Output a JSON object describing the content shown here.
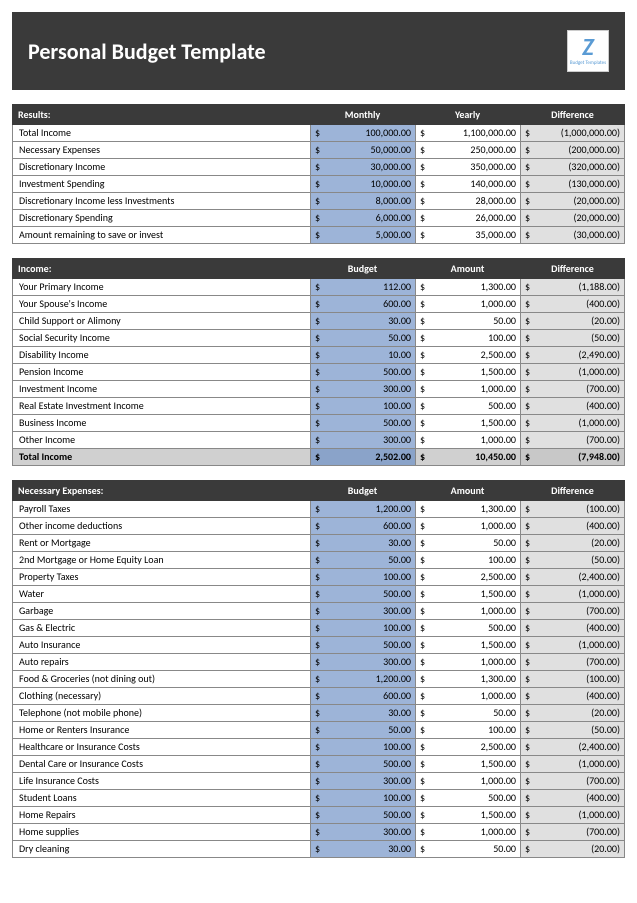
{
  "title": "Personal Budget Template",
  "logo": {
    "letter": "Z",
    "subtitle": "Budget Templates"
  },
  "currency": "$",
  "colors": {
    "header_bg": "#3a3a3a",
    "budget_col_bg": "#9db4d8",
    "diff_col_bg": "#e0e0e0",
    "total_row_bg": "#d0d0d0"
  },
  "sections": [
    {
      "title": "Results:",
      "columns": [
        "Monthly",
        "Yearly",
        "Difference"
      ],
      "rows": [
        {
          "label": "Total Income",
          "v1": "100,000.00",
          "v2": "1,100,000.00",
          "v3": "(1,000,000.00)"
        },
        {
          "label": "Necessary Expenses",
          "v1": "50,000.00",
          "v2": "250,000.00",
          "v3": "(200,000.00)"
        },
        {
          "label": "Discretionary Income",
          "v1": "30,000.00",
          "v2": "350,000.00",
          "v3": "(320,000.00)"
        },
        {
          "label": "Investment Spending",
          "v1": "10,000.00",
          "v2": "140,000.00",
          "v3": "(130,000.00)"
        },
        {
          "label": "Discretionary Income less Investments",
          "v1": "8,000.00",
          "v2": "28,000.00",
          "v3": "(20,000.00)"
        },
        {
          "label": "Discretionary Spending",
          "v1": "6,000.00",
          "v2": "26,000.00",
          "v3": "(20,000.00)"
        },
        {
          "label": "Amount remaining to save or invest",
          "v1": "5,000.00",
          "v2": "35,000.00",
          "v3": "(30,000.00)"
        }
      ]
    },
    {
      "title": "Income:",
      "columns": [
        "Budget",
        "Amount",
        "Difference"
      ],
      "rows": [
        {
          "label": "Your Primary Income",
          "v1": "112.00",
          "v2": "1,300.00",
          "v3": "(1,188.00)"
        },
        {
          "label": "Your Spouse's Income",
          "v1": "600.00",
          "v2": "1,000.00",
          "v3": "(400.00)"
        },
        {
          "label": "Child Support or Alimony",
          "v1": "30.00",
          "v2": "50.00",
          "v3": "(20.00)"
        },
        {
          "label": "Social Security Income",
          "v1": "50.00",
          "v2": "100.00",
          "v3": "(50.00)"
        },
        {
          "label": "Disability Income",
          "v1": "10.00",
          "v2": "2,500.00",
          "v3": "(2,490.00)"
        },
        {
          "label": "Pension Income",
          "v1": "500.00",
          "v2": "1,500.00",
          "v3": "(1,000.00)"
        },
        {
          "label": "Investment Income",
          "v1": "300.00",
          "v2": "1,000.00",
          "v3": "(700.00)"
        },
        {
          "label": "Real Estate Investment Income",
          "v1": "100.00",
          "v2": "500.00",
          "v3": "(400.00)"
        },
        {
          "label": "Business Income",
          "v1": "500.00",
          "v2": "1,500.00",
          "v3": "(1,000.00)"
        },
        {
          "label": "Other Income",
          "v1": "300.00",
          "v2": "1,000.00",
          "v3": "(700.00)"
        },
        {
          "label": "Total Income",
          "v1": "2,502.00",
          "v2": "10,450.00",
          "v3": "(7,948.00)",
          "total": true
        }
      ]
    },
    {
      "title": "Necessary Expenses:",
      "columns": [
        "Budget",
        "Amount",
        "Difference"
      ],
      "rows": [
        {
          "label": "Payroll Taxes",
          "v1": "1,200.00",
          "v2": "1,300.00",
          "v3": "(100.00)"
        },
        {
          "label": "Other income deductions",
          "v1": "600.00",
          "v2": "1,000.00",
          "v3": "(400.00)"
        },
        {
          "label": "Rent or Mortgage",
          "v1": "30.00",
          "v2": "50.00",
          "v3": "(20.00)"
        },
        {
          "label": "2nd Mortgage or Home Equity Loan",
          "v1": "50.00",
          "v2": "100.00",
          "v3": "(50.00)"
        },
        {
          "label": "Property Taxes",
          "v1": "100.00",
          "v2": "2,500.00",
          "v3": "(2,400.00)"
        },
        {
          "label": "Water",
          "v1": "500.00",
          "v2": "1,500.00",
          "v3": "(1,000.00)"
        },
        {
          "label": "Garbage",
          "v1": "300.00",
          "v2": "1,000.00",
          "v3": "(700.00)"
        },
        {
          "label": "Gas & Electric",
          "v1": "100.00",
          "v2": "500.00",
          "v3": "(400.00)"
        },
        {
          "label": "Auto Insurance",
          "v1": "500.00",
          "v2": "1,500.00",
          "v3": "(1,000.00)"
        },
        {
          "label": "Auto repairs",
          "v1": "300.00",
          "v2": "1,000.00",
          "v3": "(700.00)"
        },
        {
          "label": "Food & Groceries (not dining out)",
          "v1": "1,200.00",
          "v2": "1,300.00",
          "v3": "(100.00)"
        },
        {
          "label": "Clothing (necessary)",
          "v1": "600.00",
          "v2": "1,000.00",
          "v3": "(400.00)"
        },
        {
          "label": "Telephone (not mobile phone)",
          "v1": "30.00",
          "v2": "50.00",
          "v3": "(20.00)"
        },
        {
          "label": "Home or Renters Insurance",
          "v1": "50.00",
          "v2": "100.00",
          "v3": "(50.00)"
        },
        {
          "label": "Healthcare or Insurance Costs",
          "v1": "100.00",
          "v2": "2,500.00",
          "v3": "(2,400.00)"
        },
        {
          "label": "Dental Care or Insurance Costs",
          "v1": "500.00",
          "v2": "1,500.00",
          "v3": "(1,000.00)"
        },
        {
          "label": "Life Insurance Costs",
          "v1": "300.00",
          "v2": "1,000.00",
          "v3": "(700.00)"
        },
        {
          "label": "Student Loans",
          "v1": "100.00",
          "v2": "500.00",
          "v3": "(400.00)"
        },
        {
          "label": "Home Repairs",
          "v1": "500.00",
          "v2": "1,500.00",
          "v3": "(1,000.00)"
        },
        {
          "label": "Home supplies",
          "v1": "300.00",
          "v2": "1,000.00",
          "v3": "(700.00)"
        },
        {
          "label": "Dry cleaning",
          "v1": "30.00",
          "v2": "50.00",
          "v3": "(20.00)"
        }
      ]
    }
  ]
}
